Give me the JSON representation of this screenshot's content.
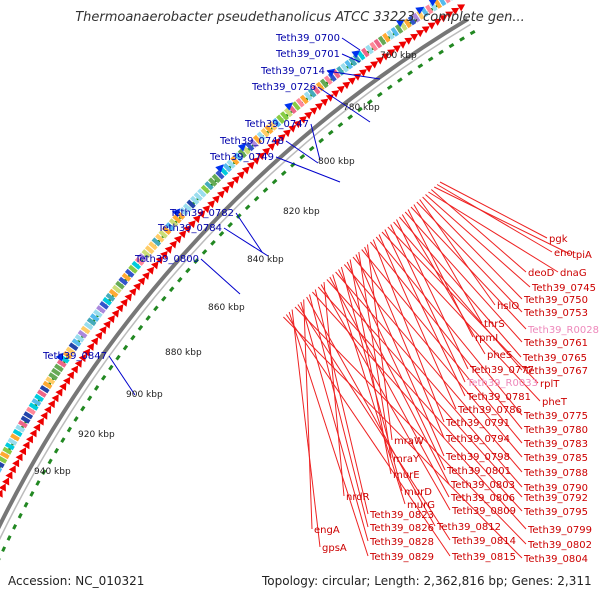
{
  "title": "Thermoanaerobacter pseudethanolicus ATCC 33223, complete gen...",
  "footer": {
    "accession": "Accession: NC_010321",
    "topology": "Topology: circular; Length: 2,362,816 bp; Genes: 2,311"
  },
  "colors": {
    "left_label": "#0000aa",
    "right_label": "#cc0000",
    "rna_label": "#ee88bb",
    "backbone": "#777777",
    "tick_dots": "#1a8a1a",
    "arrow_red": "#ee0000",
    "arrow_blue": "#0033ee"
  },
  "scale_labels": [
    "760 kbp",
    "780 kbp",
    "800 kbp",
    "820 kbp",
    "840 kbp",
    "860 kbp",
    "880 kbp",
    "900 kbp",
    "920 kbp",
    "940 kbp"
  ],
  "left_labels": [
    "Teth39_0700",
    "Teth39_0701",
    "Teth39_0714",
    "Teth39_0726",
    "Teth39_0747",
    "Teth39_0748",
    "Teth39_0749",
    "Teth39_0782",
    "Teth39_0784",
    "Teth39_0800",
    "Teth39_0847"
  ],
  "right_labels": [
    {
      "text": "pgk",
      "kind": "gene"
    },
    {
      "text": "eno",
      "kind": "gene"
    },
    {
      "text": "tpiA",
      "kind": "gene"
    },
    {
      "text": "deoD",
      "kind": "gene"
    },
    {
      "text": "dnaG",
      "kind": "gene"
    },
    {
      "text": "Teth39_0745",
      "kind": "gene"
    },
    {
      "text": "Teth39_0750",
      "kind": "gene"
    },
    {
      "text": "hslO",
      "kind": "gene"
    },
    {
      "text": "Teth39_0753",
      "kind": "gene"
    },
    {
      "text": "thrS",
      "kind": "gene"
    },
    {
      "text": "Teth39_R0028",
      "kind": "rna"
    },
    {
      "text": "rpmI",
      "kind": "gene"
    },
    {
      "text": "Teth39_0761",
      "kind": "gene"
    },
    {
      "text": "pheS",
      "kind": "gene"
    },
    {
      "text": "Teth39_0765",
      "kind": "gene"
    },
    {
      "text": "Teth39_0777",
      "kind": "gene"
    },
    {
      "text": "Teth39_0767",
      "kind": "gene"
    },
    {
      "text": "Teth39_R0033",
      "kind": "rna"
    },
    {
      "text": "rplT",
      "kind": "gene"
    },
    {
      "text": "Teth39_0781",
      "kind": "gene"
    },
    {
      "text": "pheT",
      "kind": "gene"
    },
    {
      "text": "Teth39_0786",
      "kind": "gene"
    },
    {
      "text": "Teth39_0775",
      "kind": "gene"
    },
    {
      "text": "Teth39_0791",
      "kind": "gene"
    },
    {
      "text": "Teth39_0780",
      "kind": "gene"
    },
    {
      "text": "mraW",
      "kind": "gene"
    },
    {
      "text": "Teth39_0794",
      "kind": "gene"
    },
    {
      "text": "Teth39_0783",
      "kind": "gene"
    },
    {
      "text": "mraY",
      "kind": "gene"
    },
    {
      "text": "Teth39_0798",
      "kind": "gene"
    },
    {
      "text": "Teth39_0785",
      "kind": "gene"
    },
    {
      "text": "murE",
      "kind": "gene"
    },
    {
      "text": "Teth39_0801",
      "kind": "gene"
    },
    {
      "text": "Teth39_0788",
      "kind": "gene"
    },
    {
      "text": "murD",
      "kind": "gene"
    },
    {
      "text": "Teth39_0803",
      "kind": "gene"
    },
    {
      "text": "Teth39_0790",
      "kind": "gene"
    },
    {
      "text": "murG",
      "kind": "gene"
    },
    {
      "text": "Teth39_0806",
      "kind": "gene"
    },
    {
      "text": "Teth39_0792",
      "kind": "gene"
    },
    {
      "text": "nrdR",
      "kind": "gene"
    },
    {
      "text": "Teth39_0809",
      "kind": "gene"
    },
    {
      "text": "Teth39_0795",
      "kind": "gene"
    },
    {
      "text": "Teth39_0823",
      "kind": "gene"
    },
    {
      "text": "Teth39_0799",
      "kind": "gene"
    },
    {
      "text": "Teth39_0826",
      "kind": "gene"
    },
    {
      "text": "Teth39_0812",
      "kind": "gene"
    },
    {
      "text": "engA",
      "kind": "gene"
    },
    {
      "text": "Teth39_0828",
      "kind": "gene"
    },
    {
      "text": "Teth39_0814",
      "kind": "gene"
    },
    {
      "text": "Teth39_0802",
      "kind": "gene"
    },
    {
      "text": "gpsA",
      "kind": "gene"
    },
    {
      "text": "Teth39_0829",
      "kind": "gene"
    },
    {
      "text": "Teth39_0815",
      "kind": "gene"
    },
    {
      "text": "Teth39_0804",
      "kind": "gene"
    }
  ]
}
